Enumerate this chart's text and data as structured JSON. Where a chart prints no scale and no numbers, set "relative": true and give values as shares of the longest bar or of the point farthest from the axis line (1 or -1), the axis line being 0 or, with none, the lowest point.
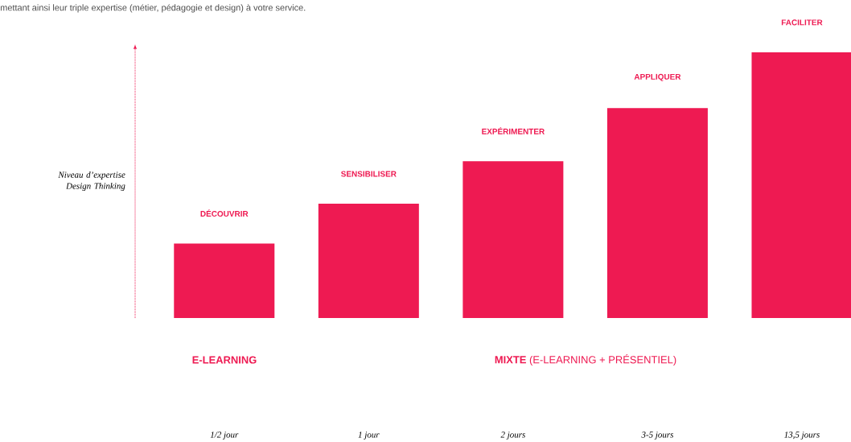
{
  "chart_data": {
    "type": "bar",
    "relative": true,
    "ylabel": "Niveau d’expertise Design Thinking",
    "categories": [
      "1/2 jour",
      "1 jour",
      "2 jours",
      "3-5 jours",
      "13,5 jours"
    ],
    "values": [
      0.28,
      0.43,
      0.59,
      0.79,
      1
    ],
    "color": "#ee1a52",
    "annotations": [
      "mettant ainsi leur triple expertise (métier, pédagogie et design) à votre service.",
      "DÉCOUVRIR",
      "SENSIBILISER",
      "EXPÉRIMENTER",
      "APPLIQUER",
      "FACILITER",
      "E-LEARNING",
      "**MIXTE** (E-LEARNING + PRÉSENTIEL)"
    ]
  }
}
